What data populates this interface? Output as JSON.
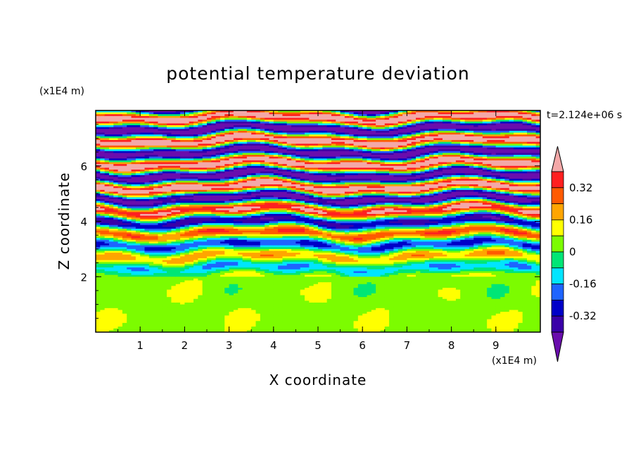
{
  "chart_data": {
    "type": "heatmap",
    "title": "potential temperature deviation",
    "xlabel": "X coordinate",
    "ylabel": "Z coordinate",
    "x_unit": "(x1E4 m)",
    "y_unit": "(x1E4 m)",
    "time_label": "t=2.124e+06 s",
    "xlim": [
      0,
      10
    ],
    "ylim": [
      0,
      8
    ],
    "x_ticks": [
      "1",
      "2",
      "3",
      "4",
      "5",
      "6",
      "7",
      "8",
      "9"
    ],
    "y_ticks": [
      "2",
      "4",
      "6"
    ],
    "colorbar": {
      "levels": [
        -0.4,
        -0.32,
        -0.24,
        -0.16,
        -0.08,
        0,
        0.08,
        0.16,
        0.24,
        0.32,
        0.4
      ],
      "colors": [
        "#6a0dad",
        "#3a00a8",
        "#0000c8",
        "#1e64ff",
        "#00e5ff",
        "#00e676",
        "#7cfc00",
        "#ffff00",
        "#ffa500",
        "#ff5a00",
        "#ff2020",
        "#f4a8a8"
      ],
      "tick_labels": [
        "0.32",
        "0.16",
        "0",
        "-0.16",
        "-0.32"
      ]
    }
  }
}
